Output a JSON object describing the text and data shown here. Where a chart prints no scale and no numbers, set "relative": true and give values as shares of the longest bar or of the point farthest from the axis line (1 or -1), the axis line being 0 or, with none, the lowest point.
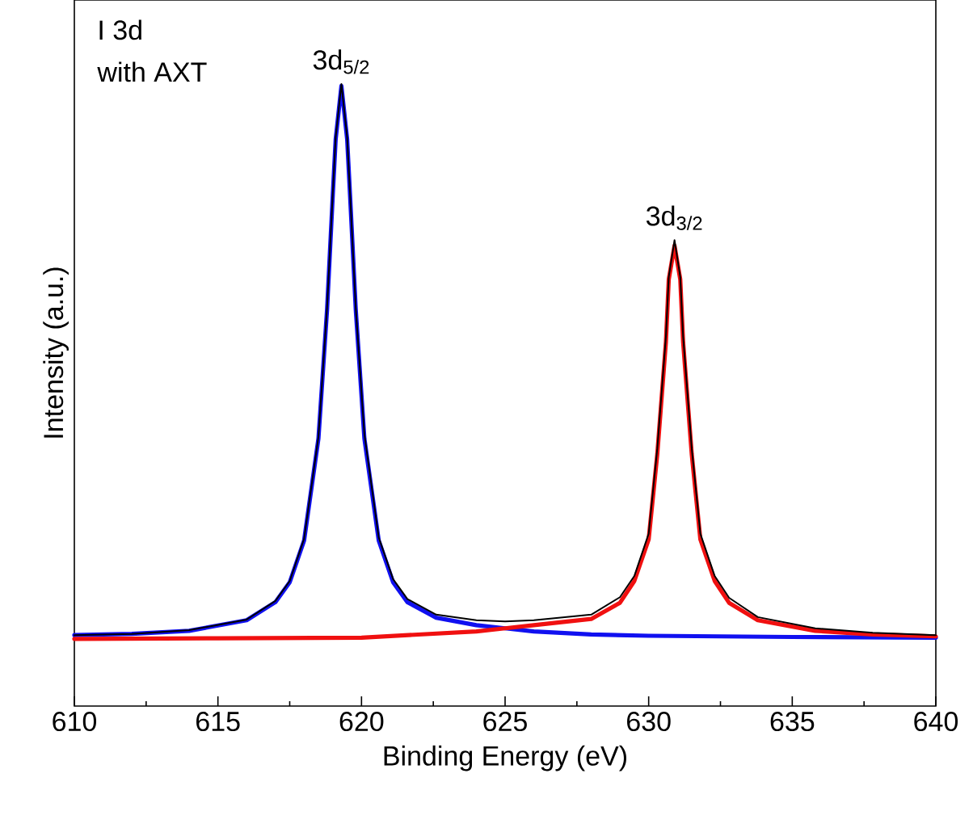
{
  "chart_data": {
    "type": "line",
    "relative": true,
    "xlabel": "Binding Energy (eV)",
    "ylabel": "Intensity (a.u.)",
    "xlim": [
      610,
      640
    ],
    "xticks": [
      610,
      615,
      620,
      625,
      630,
      635,
      640
    ],
    "marker": "none",
    "line_style": "solid",
    "series": [
      {
        "color": "#1010f0",
        "x": [
          610,
          612,
          614,
          616,
          617,
          617.5,
          618,
          618.5,
          618.8,
          619,
          619.1,
          619.3,
          619.5,
          619.6,
          619.8,
          620.1,
          620.6,
          621.1,
          621.6,
          622.6,
          624,
          625,
          626,
          628,
          630,
          635,
          640
        ],
        "values": [
          0.114,
          0.116,
          0.121,
          0.138,
          0.167,
          0.199,
          0.266,
          0.43,
          0.637,
          0.822,
          0.911,
          0.997,
          0.911,
          0.822,
          0.637,
          0.43,
          0.266,
          0.199,
          0.167,
          0.142,
          0.13,
          0.125,
          0.12,
          0.115,
          0.113,
          0.111,
          0.11
        ]
      },
      {
        "color": "#f01010",
        "x": [
          610,
          615,
          620,
          624,
          625,
          626,
          628,
          629,
          629.5,
          630,
          630.3,
          630.6,
          630.7,
          630.9,
          631.1,
          631.2,
          631.5,
          631.8,
          632.3,
          632.8,
          633.8,
          635.8,
          637.8,
          640
        ],
        "values": [
          0.108,
          0.109,
          0.11,
          0.12,
          0.125,
          0.13,
          0.14,
          0.166,
          0.201,
          0.268,
          0.405,
          0.585,
          0.686,
          0.74,
          0.686,
          0.585,
          0.405,
          0.268,
          0.201,
          0.166,
          0.138,
          0.121,
          0.115,
          0.112
        ]
      },
      {
        "color": "#000000",
        "x": [
          610,
          612,
          614,
          616,
          617,
          617.5,
          618,
          618.5,
          618.8,
          619,
          619.1,
          619.3,
          619.5,
          619.6,
          619.8,
          620.1,
          620.6,
          621.1,
          621.6,
          622.6,
          624,
          625,
          626,
          628,
          629,
          629.5,
          630,
          630.3,
          630.6,
          630.7,
          630.9,
          631.1,
          631.2,
          631.5,
          631.8,
          632.3,
          632.8,
          633.8,
          635.8,
          637.8,
          640
        ],
        "values": [
          0.114,
          0.116,
          0.122,
          0.139,
          0.169,
          0.201,
          0.269,
          0.433,
          0.64,
          0.825,
          0.914,
          1.0,
          0.914,
          0.825,
          0.64,
          0.437,
          0.271,
          0.204,
          0.172,
          0.147,
          0.138,
          0.136,
          0.138,
          0.147,
          0.175,
          0.209,
          0.277,
          0.414,
          0.594,
          0.69,
          0.749,
          0.69,
          0.594,
          0.414,
          0.277,
          0.209,
          0.174,
          0.143,
          0.125,
          0.118,
          0.114
        ]
      }
    ],
    "annotations": [
      "I 3d",
      "with AXT",
      {
        "text": "3d$_{5/2}$",
        "x": 619.3,
        "y": 1.0
      },
      {
        "text": "3d$_{3/2}$",
        "x": 630.9,
        "y": 0.749
      }
    ]
  }
}
